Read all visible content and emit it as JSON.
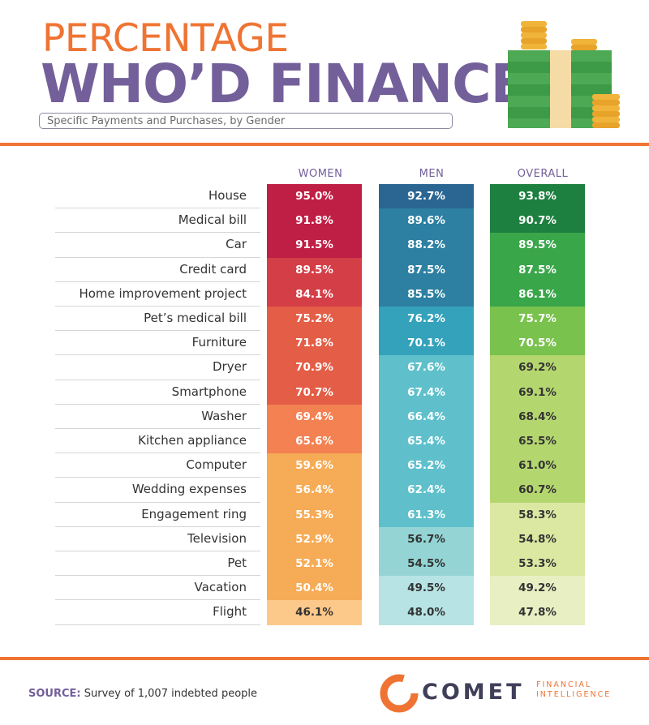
{
  "title_line1": "PERCENTAGE",
  "title_line2": "WHO’D FINANCE",
  "subtitle": "Specific Payments and Purchases, by Gender",
  "source_label": "SOURCE:",
  "source_text": " Survey of 1,007 indebted people",
  "logo": {
    "word": "COMET",
    "line1": "FINANCIAL",
    "line2": "INTELLIGENCE"
  },
  "chart_data": {
    "type": "table",
    "columns": [
      "WOMEN",
      "MEN",
      "OVERALL"
    ],
    "categories": [
      "House",
      "Medical bill",
      "Car",
      "Credit card",
      "Home improvement project",
      "Pet’s medical bill",
      "Furniture",
      "Dryer",
      "Smartphone",
      "Washer",
      "Kitchen appliance",
      "Computer",
      "Wedding expenses",
      "Engagement ring",
      "Television",
      "Pet",
      "Vacation",
      "Flight"
    ],
    "series": [
      {
        "name": "WOMEN",
        "values": [
          "95.0%",
          "91.8%",
          "91.5%",
          "89.5%",
          "84.1%",
          "75.2%",
          "71.8%",
          "70.9%",
          "70.7%",
          "69.4%",
          "65.6%",
          "59.6%",
          "56.4%",
          "55.3%",
          "52.9%",
          "52.1%",
          "50.4%",
          "46.1%"
        ],
        "colors": [
          "#c01f45",
          "#c01f45",
          "#c01f45",
          "#d43e46",
          "#d43e46",
          "#e35d47",
          "#e35d47",
          "#e35d47",
          "#e35d47",
          "#f38152",
          "#f38152",
          "#f6ab56",
          "#f6ab56",
          "#f6ab56",
          "#f6ab56",
          "#f6ab56",
          "#f6ab56",
          "#fdc98a"
        ]
      },
      {
        "name": "MEN",
        "values": [
          "92.7%",
          "89.6%",
          "88.2%",
          "87.5%",
          "85.5%",
          "76.2%",
          "70.1%",
          "67.6%",
          "67.4%",
          "66.4%",
          "65.4%",
          "65.2%",
          "62.4%",
          "61.3%",
          "56.7%",
          "54.5%",
          "49.5%",
          "48.0%"
        ],
        "colors": [
          "#2b6693",
          "#2d80a1",
          "#2d80a1",
          "#2d80a1",
          "#2d80a1",
          "#34a2ba",
          "#34a2ba",
          "#5fc0cb",
          "#5fc0cb",
          "#5fc0cb",
          "#5fc0cb",
          "#5fc0cb",
          "#5fc0cb",
          "#5fc0cb",
          "#94d4d5",
          "#94d4d5",
          "#b7e3e4",
          "#b7e3e4"
        ]
      },
      {
        "name": "OVERALL",
        "values": [
          "93.8%",
          "90.7%",
          "89.5%",
          "87.5%",
          "86.1%",
          "75.7%",
          "70.5%",
          "69.2%",
          "69.1%",
          "68.4%",
          "65.5%",
          "61.0%",
          "60.7%",
          "58.3%",
          "54.8%",
          "53.3%",
          "49.2%",
          "47.8%"
        ],
        "colors": [
          "#1e8040",
          "#1e8040",
          "#3aa64a",
          "#3aa64a",
          "#3aa64a",
          "#79c24d",
          "#79c24d",
          "#b4d66f",
          "#b4d66f",
          "#b4d66f",
          "#b4d66f",
          "#b4d66f",
          "#b4d66f",
          "#dbe8a2",
          "#dbe8a2",
          "#dbe8a2",
          "#e7efc3",
          "#e7efc3"
        ]
      }
    ]
  }
}
